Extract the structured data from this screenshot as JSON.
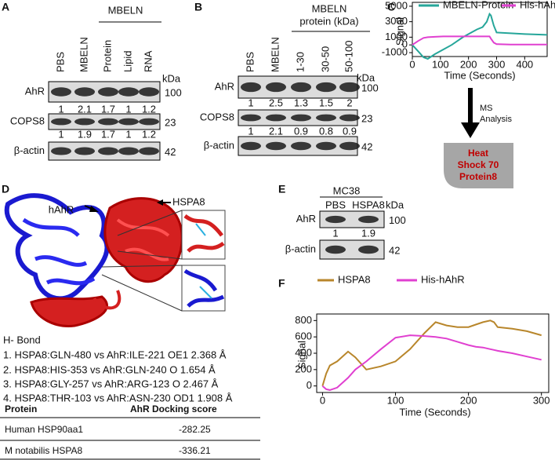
{
  "panel_labels": [
    "A",
    "B",
    "C",
    "D",
    "E",
    "F"
  ],
  "panel_a": {
    "group": "MBELN",
    "lanes": [
      "PBS",
      "MBELN",
      "Protein",
      "Lipid",
      "RNA"
    ],
    "unit": "kDa",
    "rows": [
      {
        "name": "AhR",
        "kda": 100,
        "quant": [
          1,
          2.1,
          1.7,
          1,
          1.2
        ]
      },
      {
        "name": "COPS8",
        "kda": 23,
        "quant": [
          1,
          1.9,
          1.7,
          1,
          1.2
        ]
      },
      {
        "name": "β-actin",
        "kda": 42
      }
    ]
  },
  "panel_b": {
    "group": [
      "MBELN",
      "protein (kDa)"
    ],
    "lanes": [
      "PBS",
      "MBELN",
      "1-30",
      "30-50",
      "50-100"
    ],
    "unit": "kDa",
    "rows": [
      {
        "name": "AhR",
        "kda": 100,
        "quant": [
          1,
          2.5,
          1.3,
          1.5,
          2
        ]
      },
      {
        "name": "COPS8",
        "kda": 23,
        "quant": [
          1,
          2.1,
          0.9,
          0.8,
          0.9
        ]
      },
      {
        "name": "β-actin",
        "kda": 42
      }
    ]
  },
  "panel_c": {
    "arrow_label": [
      "MS",
      "Analysis"
    ],
    "box": [
      "Heat",
      "Shock 70",
      "Protein8"
    ]
  },
  "panel_d": {
    "labels": [
      "hAhR",
      "HSPA8"
    ],
    "hbond_title": "H- Bond",
    "hbonds": [
      "1. HSPA8:GLN-480 vs AhR:ILE-221 OE1 2.368 Å",
      "2. HSPA8:HIS-353 vs AhR:GLN-240 O 1.654 Å",
      "3. HSPA8:GLY-257 vs AhR:ARG-123 O 2.467 Å",
      "4. HSPA8:THR-103 vs AhR:ASN-230 OD1 1.908 Å"
    ],
    "table": {
      "header": [
        "Protein",
        "AhR Docking score"
      ],
      "rows": [
        [
          "Human HSP90aa1",
          -282.25
        ],
        [
          "M notabilis HSPA8",
          -336.21
        ]
      ]
    }
  },
  "panel_e": {
    "group": "MC38",
    "lanes": [
      "PBS",
      "HSPA8"
    ],
    "unit": "kDa",
    "rows": [
      {
        "name": "AhR",
        "kda": 100,
        "quant": [
          1,
          1.9
        ]
      },
      {
        "name": "β-actin",
        "kda": 42
      }
    ]
  },
  "chart_data": [
    {
      "type": "line",
      "y_label": "Signal",
      "x_label": "Time (Seconds)",
      "x": [
        0,
        20,
        40,
        55,
        80,
        110,
        140,
        160,
        180,
        200,
        230,
        250,
        265,
        275,
        280,
        290,
        300,
        350,
        400,
        480
      ],
      "series": [
        {
          "name": "MBELN-Protein",
          "color": "#26a69a",
          "values": [
            0,
            -800,
            -1600,
            -1800,
            -1200,
            -600,
            0,
            500,
            1000,
            1400,
            2000,
            2300,
            3000,
            4000,
            3800,
            2500,
            1600,
            1500,
            1400,
            1300
          ]
        },
        {
          "name": "His-hAhR",
          "color": "#e040d0",
          "values": [
            0,
            500,
            900,
            1000,
            1050,
            1100,
            1100,
            1100,
            1100,
            1100,
            1100,
            1100,
            1100,
            1100,
            800,
            300,
            100,
            50,
            50,
            50
          ]
        }
      ],
      "xlim": [
        0,
        480
      ],
      "xticks": [
        0,
        100,
        200,
        300,
        400
      ],
      "ylim": [
        -1500,
        5500
      ],
      "yticks": [
        -1000,
        0,
        1000,
        3000,
        5000
      ]
    },
    {
      "type": "line",
      "y_label": "Signal",
      "x_label": "Time (Seconds)",
      "x": [
        0,
        5,
        10,
        20,
        35,
        45,
        60,
        80,
        100,
        120,
        140,
        155,
        170,
        185,
        200,
        210,
        220,
        230,
        235,
        240,
        260,
        280,
        300
      ],
      "series": [
        {
          "name": "HSPA8",
          "color": "#b8862b",
          "values": [
            0,
            150,
            250,
            300,
            420,
            350,
            200,
            240,
            300,
            450,
            650,
            780,
            740,
            720,
            720,
            750,
            780,
            800,
            780,
            720,
            700,
            670,
            620
          ]
        },
        {
          "name": "His-hAhR",
          "color": "#e040d0",
          "values": [
            0,
            -40,
            -50,
            -20,
            100,
            200,
            300,
            450,
            590,
            620,
            610,
            600,
            580,
            540,
            500,
            480,
            470,
            450,
            440,
            430,
            400,
            360,
            320
          ]
        }
      ],
      "xlim": [
        -8,
        310
      ],
      "xticks": [
        0,
        100,
        200,
        300
      ],
      "ylim": [
        -80,
        880
      ],
      "yticks": [
        0,
        200,
        400,
        600,
        800
      ]
    }
  ]
}
